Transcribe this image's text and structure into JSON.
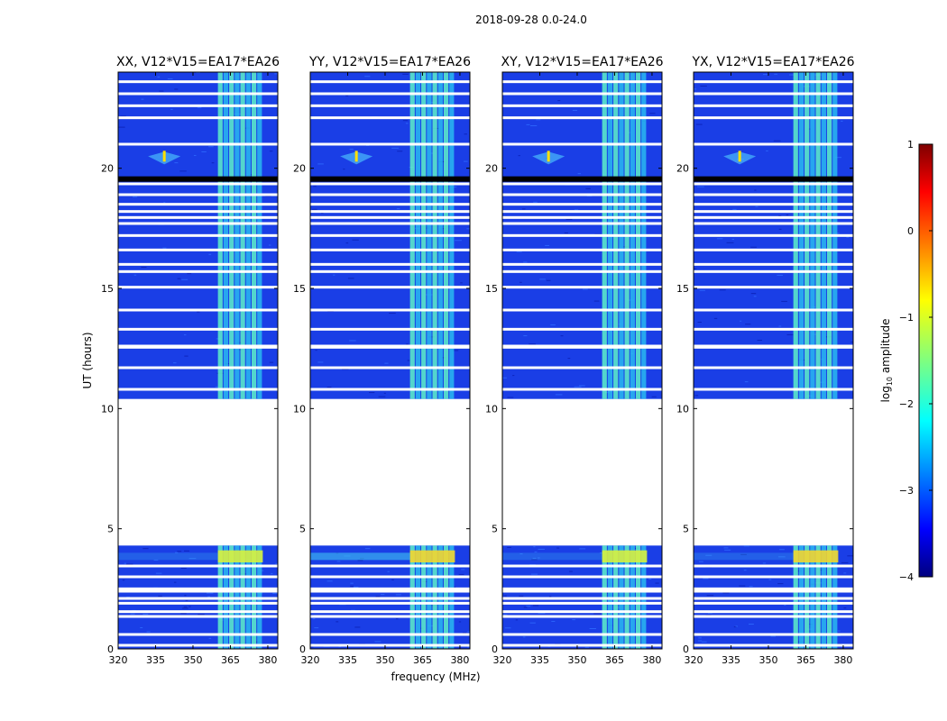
{
  "figure": {
    "suptitle": "2018-09-28 0.0-24.0",
    "xlabel": "frequency (MHz)",
    "ylabel": "UT (hours)"
  },
  "colorbar": {
    "label_prefix": "log",
    "label_sub": "10",
    "label_suffix": " amplitude",
    "range": [
      -4,
      1
    ],
    "ticks": [
      1,
      0,
      -1,
      -2,
      -3,
      -4
    ],
    "tick_labels": [
      "1",
      "0",
      "−1",
      "−2",
      "−3",
      "−4"
    ],
    "colormap": [
      "#00007f",
      "#0000ff",
      "#007fff",
      "#00ffff",
      "#7fff7f",
      "#ffff00",
      "#ff7f00",
      "#ff0000",
      "#7f0000"
    ]
  },
  "chart_data": {
    "type": "heatmap",
    "description_units": "x: frequency in MHz, y: UT in hours, color: log10 amplitude",
    "xlim": [
      320,
      384
    ],
    "ylim": [
      0,
      24
    ],
    "x_ticks": [
      320,
      335,
      350,
      365,
      380
    ],
    "x_tick_labels": [
      "320",
      "335",
      "350",
      "365",
      "380"
    ],
    "y_ticks": [
      0,
      5,
      10,
      15,
      20
    ],
    "y_tick_labels": [
      "0",
      "5",
      "10",
      "15",
      "20"
    ],
    "data_segments_ut": [
      [
        0,
        4.3
      ],
      [
        10.4,
        24
      ]
    ],
    "empty_segments_ut": [
      [
        4.3,
        10.4
      ]
    ],
    "rfi_band_mhz": [
      360,
      378
    ],
    "flagged_rows_ut": [
      19.35,
      18.9,
      18.5,
      18.2,
      17.95,
      17.7,
      17.2,
      16.6,
      16.0,
      15.7,
      15.05,
      14.1,
      13.3,
      12.6,
      12.55,
      11.7,
      10.8,
      3.45,
      3.0,
      2.5,
      2.4,
      2.1,
      1.9,
      1.55,
      1.35,
      0.6,
      0.15,
      23.6,
      23.1,
      22.6,
      22.1,
      21.0
    ],
    "panels": [
      {
        "title": "XX, V12*V15=EA17*EA26"
      },
      {
        "title": "YY, V12*V15=EA17*EA26"
      },
      {
        "title": "XY, V12*V15=EA17*EA26"
      },
      {
        "title": "YX, V12*V15=EA17*EA26"
      }
    ]
  }
}
